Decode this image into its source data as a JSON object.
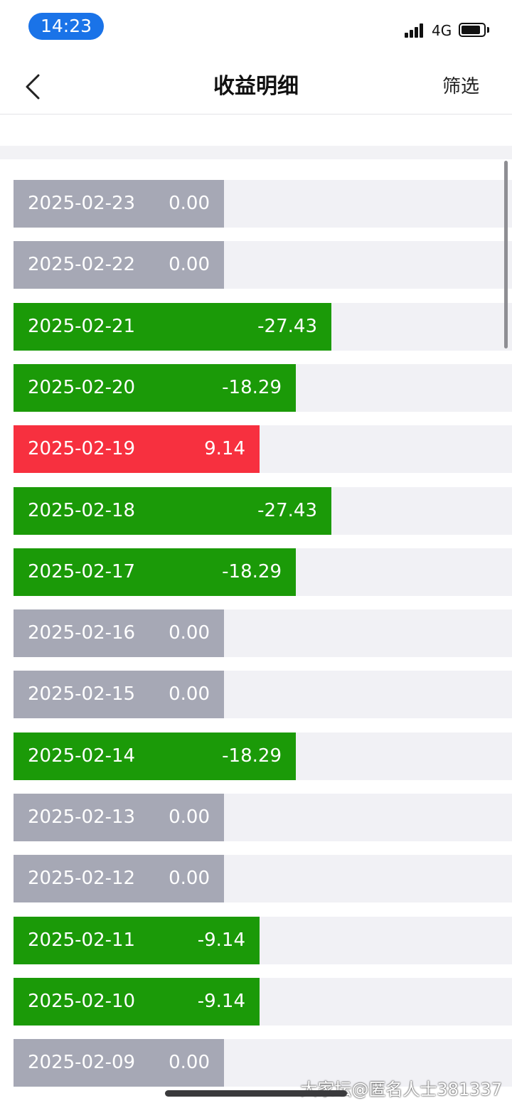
{
  "status_bar": {
    "time": "14:23",
    "network": "4G",
    "battery_level": 0.85
  },
  "nav": {
    "back_icon": "chevron-left-icon",
    "title": "收益明细",
    "filter_label": "筛选"
  },
  "colors": {
    "gain": "#f7303f",
    "loss": "#1b9a08",
    "zero": "#a6a8b5",
    "track": "#f1f1f5"
  },
  "records": [
    {
      "date": "2025-02-23",
      "value": "0.00"
    },
    {
      "date": "2025-02-22",
      "value": "0.00"
    },
    {
      "date": "2025-02-21",
      "value": "-27.43"
    },
    {
      "date": "2025-02-20",
      "value": "-18.29"
    },
    {
      "date": "2025-02-19",
      "value": "9.14"
    },
    {
      "date": "2025-02-18",
      "value": "-27.43"
    },
    {
      "date": "2025-02-17",
      "value": "-18.29"
    },
    {
      "date": "2025-02-16",
      "value": "0.00"
    },
    {
      "date": "2025-02-15",
      "value": "0.00"
    },
    {
      "date": "2025-02-14",
      "value": "-18.29"
    },
    {
      "date": "2025-02-13",
      "value": "0.00"
    },
    {
      "date": "2025-02-12",
      "value": "0.00"
    },
    {
      "date": "2025-02-11",
      "value": "-9.14"
    },
    {
      "date": "2025-02-10",
      "value": "-9.14"
    },
    {
      "date": "2025-02-09",
      "value": "0.00"
    }
  ],
  "watermark": "大家坛@匿名人士381337"
}
